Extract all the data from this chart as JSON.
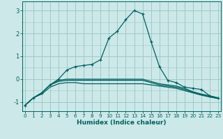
{
  "xlabel": "Humidex (Indice chaleur)",
  "ylabel": "",
  "x": [
    0,
    1,
    2,
    3,
    4,
    5,
    6,
    7,
    8,
    9,
    10,
    11,
    12,
    13,
    14,
    15,
    16,
    17,
    18,
    19,
    20,
    21,
    22,
    23
  ],
  "line1": [
    -1.15,
    -0.82,
    -0.65,
    -0.35,
    -0.2,
    -0.15,
    -0.15,
    -0.2,
    -0.2,
    -0.2,
    -0.2,
    -0.2,
    -0.2,
    -0.2,
    -0.2,
    -0.25,
    -0.3,
    -0.35,
    -0.4,
    -0.5,
    -0.6,
    -0.7,
    -0.78,
    -0.85
  ],
  "line2": [
    -1.15,
    -0.82,
    -0.6,
    -0.25,
    -0.1,
    -0.05,
    -0.05,
    -0.05,
    -0.05,
    -0.05,
    -0.05,
    -0.05,
    -0.05,
    -0.05,
    -0.05,
    -0.15,
    -0.25,
    -0.3,
    -0.35,
    -0.45,
    -0.58,
    -0.68,
    -0.76,
    -0.84
  ],
  "line3": [
    -1.15,
    -0.82,
    -0.6,
    -0.25,
    -0.05,
    0.0,
    0.0,
    0.0,
    0.0,
    0.0,
    0.0,
    0.0,
    0.0,
    0.0,
    0.0,
    -0.1,
    -0.2,
    -0.25,
    -0.3,
    -0.4,
    -0.55,
    -0.65,
    -0.73,
    -0.82
  ],
  "line_main": [
    -1.15,
    -0.82,
    -0.6,
    -0.25,
    0.0,
    0.4,
    0.55,
    0.6,
    0.65,
    0.85,
    1.8,
    2.1,
    2.6,
    3.0,
    2.85,
    1.65,
    0.55,
    -0.05,
    -0.15,
    -0.35,
    -0.4,
    -0.45,
    -0.73,
    -0.82
  ],
  "bg_color": "#cce8e8",
  "grid_color": "#a0c8c8",
  "line_color": "#006060",
  "marker": "+",
  "ylim": [
    -1.4,
    3.4
  ],
  "yticks": [
    -1,
    0,
    1,
    2,
    3
  ],
  "xticks": [
    0,
    1,
    2,
    3,
    4,
    5,
    6,
    7,
    8,
    9,
    10,
    11,
    12,
    13,
    14,
    15,
    16,
    17,
    18,
    19,
    20,
    21,
    22,
    23
  ],
  "xlim": [
    -0.3,
    23.3
  ]
}
